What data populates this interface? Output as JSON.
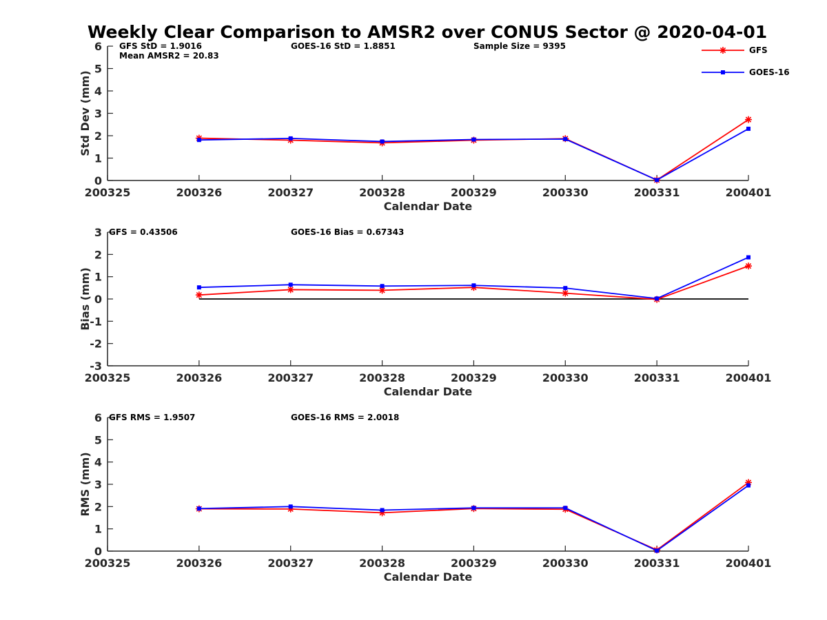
{
  "chart_data": {
    "title": "Weekly Clear Comparison to AMSR2 over CONUS Sector @ 2020-04-01",
    "legend": {
      "placement": "top-right",
      "entries": [
        {
          "name": "GFS",
          "color": "#ff0000",
          "marker": "asterisk"
        },
        {
          "name": "GOES-16",
          "color": "#0000ff",
          "marker": "square"
        }
      ]
    },
    "panels": [
      {
        "type": "line",
        "xlabel": "Calendar Date",
        "ylabel": "Std Dev (mm)",
        "x_ticks": [
          "200325",
          "200326",
          "200327",
          "200328",
          "200329",
          "200330",
          "200331",
          "200401"
        ],
        "ylim": [
          0,
          6
        ],
        "y_ticks": [
          0,
          1,
          2,
          3,
          4,
          5,
          6
        ],
        "zero_line": false,
        "annotations": [
          {
            "key": "gfs_std",
            "text": "GFS StD = 1.9016",
            "col": 0,
            "row": 0
          },
          {
            "key": "goes_std",
            "text": "GOES-16 StD = 1.8851",
            "col": 1,
            "row": 0
          },
          {
            "key": "sample_size",
            "text": "Sample Size = 9395",
            "col": 2,
            "row": 0
          },
          {
            "key": "mean_amsr2",
            "text": "Mean AMSR2 = 20.83",
            "col": 0,
            "row": 1
          }
        ],
        "series": [
          {
            "name": "GFS",
            "color": "#ff0000",
            "marker": "asterisk",
            "x": [
              "200326",
              "200327",
              "200328",
              "200329",
              "200330",
              "200331",
              "200401"
            ],
            "values": [
              1.89,
              1.8,
              1.68,
              1.8,
              1.87,
              0.02,
              2.72
            ]
          },
          {
            "name": "GOES-16",
            "color": "#0000ff",
            "marker": "square",
            "x": [
              "200326",
              "200327",
              "200328",
              "200329",
              "200330",
              "200331",
              "200401"
            ],
            "values": [
              1.81,
              1.88,
              1.74,
              1.83,
              1.85,
              0.02,
              2.31
            ]
          }
        ]
      },
      {
        "type": "line",
        "xlabel": "Calendar Date",
        "ylabel": "Bias (mm)",
        "x_ticks": [
          "200325",
          "200326",
          "200327",
          "200328",
          "200329",
          "200330",
          "200331",
          "200401"
        ],
        "ylim": [
          -3,
          3
        ],
        "y_ticks": [
          -3,
          -2,
          -1,
          0,
          1,
          2,
          3
        ],
        "zero_line": true,
        "annotations": [
          {
            "key": "gfs_bias",
            "text": "GFS = 0.43506",
            "col": 0,
            "row": 0
          },
          {
            "key": "goes_bias",
            "text": "GOES-16 Bias  = 0.67343",
            "col": 1,
            "row": 0
          }
        ],
        "series": [
          {
            "name": "GFS",
            "color": "#ff0000",
            "marker": "asterisk",
            "x": [
              "200326",
              "200327",
              "200328",
              "200329",
              "200330",
              "200331",
              "200401"
            ],
            "values": [
              0.18,
              0.42,
              0.39,
              0.52,
              0.26,
              -0.02,
              1.48
            ]
          },
          {
            "name": "GOES-16",
            "color": "#0000ff",
            "marker": "square",
            "x": [
              "200326",
              "200327",
              "200328",
              "200329",
              "200330",
              "200331",
              "200401"
            ],
            "values": [
              0.52,
              0.64,
              0.58,
              0.61,
              0.49,
              0.02,
              1.87
            ]
          }
        ]
      },
      {
        "type": "line",
        "xlabel": "Calendar Date",
        "ylabel": "RMS (mm)",
        "x_ticks": [
          "200325",
          "200326",
          "200327",
          "200328",
          "200329",
          "200330",
          "200331",
          "200401"
        ],
        "ylim": [
          0,
          6
        ],
        "y_ticks": [
          0,
          1,
          2,
          3,
          4,
          5,
          6
        ],
        "zero_line": false,
        "annotations": [
          {
            "key": "gfs_rms",
            "text": "GFS RMS = 1.9507",
            "col": 0,
            "row": 0
          },
          {
            "key": "goes_rms",
            "text": "GOES-16 RMS = 2.0018",
            "col": 1,
            "row": 0
          }
        ],
        "series": [
          {
            "name": "GFS",
            "color": "#ff0000",
            "marker": "asterisk",
            "x": [
              "200326",
              "200327",
              "200328",
              "200329",
              "200330",
              "200331",
              "200401"
            ],
            "values": [
              1.9,
              1.89,
              1.72,
              1.91,
              1.88,
              0.05,
              3.08
            ]
          },
          {
            "name": "GOES-16",
            "color": "#0000ff",
            "marker": "square",
            "x": [
              "200326",
              "200327",
              "200328",
              "200329",
              "200330",
              "200331",
              "200401"
            ],
            "values": [
              1.91,
              2.0,
              1.84,
              1.94,
              1.94,
              0.02,
              2.95
            ]
          }
        ]
      }
    ]
  }
}
